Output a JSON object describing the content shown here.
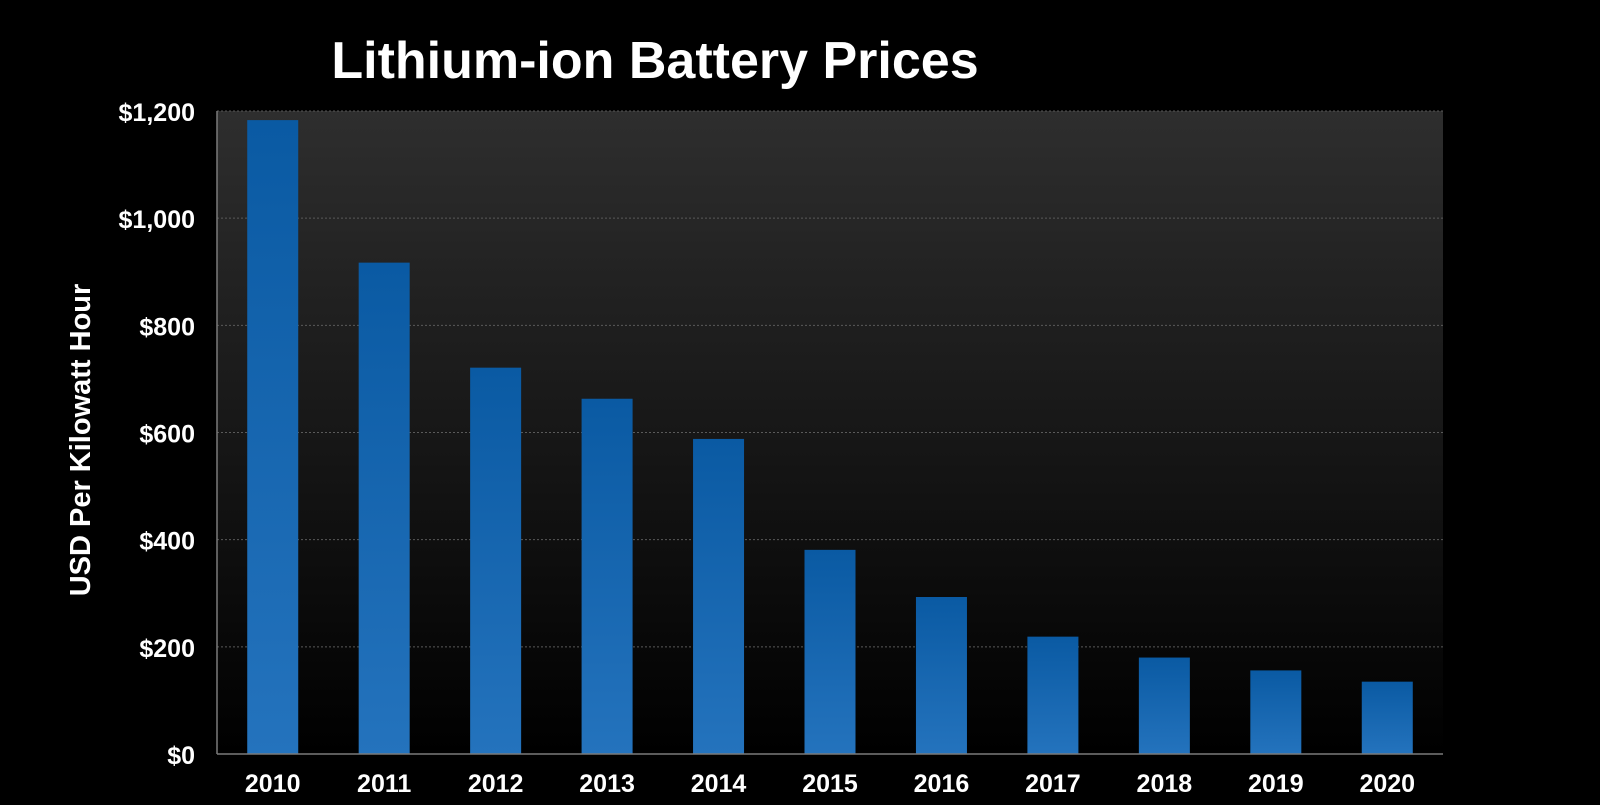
{
  "chart_data": {
    "type": "bar",
    "title": "Lithium-ion Battery Prices",
    "xlabel": "",
    "ylabel": "USD Per Kilowatt Hour",
    "categories": [
      "2010",
      "2011",
      "2012",
      "2013",
      "2014",
      "2015",
      "2016",
      "2017",
      "2018",
      "2019",
      "2020"
    ],
    "values": [
      1183,
      917,
      721,
      663,
      588,
      381,
      293,
      219,
      180,
      156,
      135
    ],
    "ylim": [
      0,
      1200
    ],
    "yticks": [
      0,
      200,
      400,
      600,
      800,
      1000,
      1200
    ],
    "ytick_labels": [
      "$0",
      "$200",
      "$400",
      "$600",
      "$800",
      "$1,000",
      "$1,200"
    ],
    "grid": true,
    "legend": "none",
    "colors": {
      "background": "#000000",
      "plot_background_top": "#2e2e2e",
      "plot_background_bottom": "#000000",
      "bar_top": "#0a5aa3",
      "bar_bottom": "#2473bd",
      "gridline": "#5a5a5a",
      "text": "#ffffff"
    }
  }
}
